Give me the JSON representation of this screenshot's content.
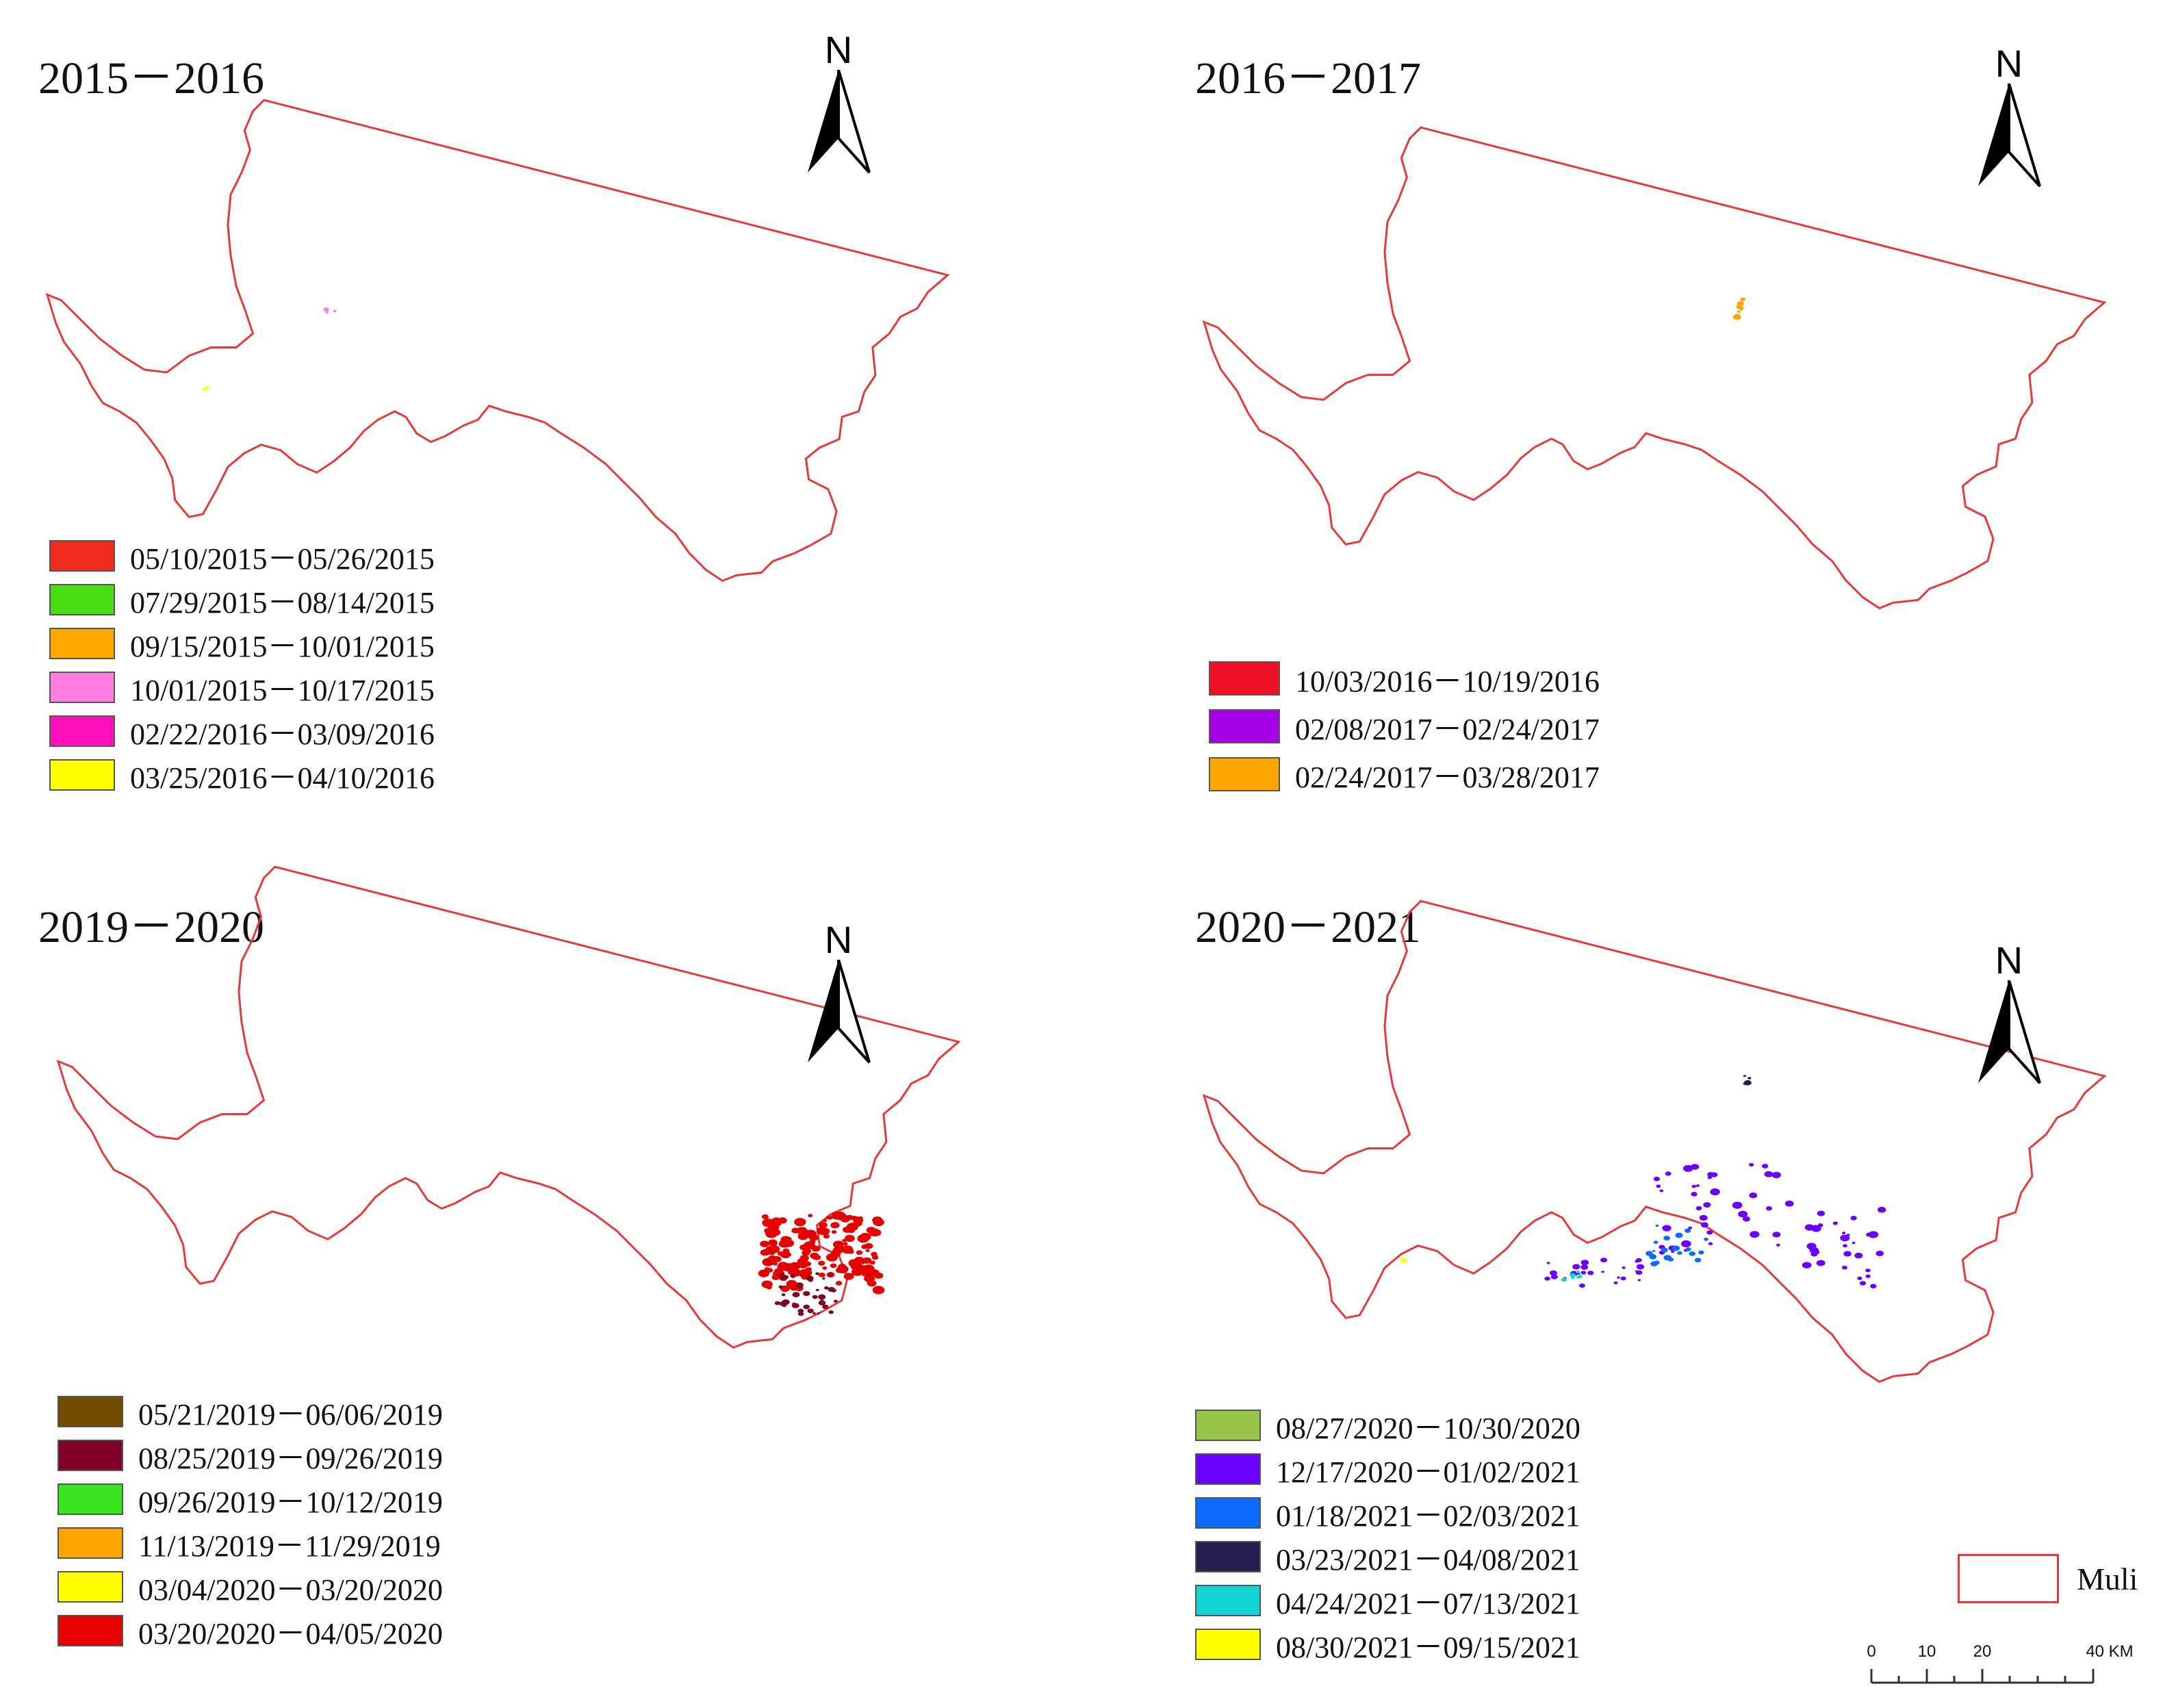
{
  "colors": {
    "boundary": "#e53a3a"
  },
  "panels": [
    {
      "title": "2015－2016",
      "north_label": "N",
      "legend": [
        {
          "label": "05/10/2015－05/26/2015",
          "color": "#f22a1e"
        },
        {
          "label": "07/29/2015－08/14/2015",
          "color": "#4cde14"
        },
        {
          "label": "09/15/2015－10/01/2015",
          "color": "#ffa800"
        },
        {
          "label": "10/01/2015－10/17/2015",
          "color": "#ff7fe0"
        },
        {
          "label": "02/22/2016－03/09/2016",
          "color": "#ff10b8"
        },
        {
          "label": "03/25/2016－04/10/2016",
          "color": "#ffff00"
        }
      ]
    },
    {
      "title": "2016－2017",
      "north_label": "N",
      "legend": [
        {
          "label": "10/03/2016－10/19/2016",
          "color": "#f01026"
        },
        {
          "label": "02/08/2017－02/24/2017",
          "color": "#a800e6"
        },
        {
          "label": "02/24/2017－03/28/2017",
          "color": "#ffa500"
        }
      ]
    },
    {
      "title": "2019－2020",
      "north_label": "N",
      "legend": [
        {
          "label": "05/21/2019－06/06/2019",
          "color": "#734c00"
        },
        {
          "label": "08/25/2019－09/26/2019",
          "color": "#800026"
        },
        {
          "label": "09/26/2019－10/12/2019",
          "color": "#38e51e"
        },
        {
          "label": "11/13/2019－11/29/2019",
          "color": "#ffa500"
        },
        {
          "label": "03/04/2020－03/20/2020",
          "color": "#ffff00"
        },
        {
          "label": "03/20/2020－04/05/2020",
          "color": "#e60000"
        }
      ]
    },
    {
      "title": "2020－2021",
      "north_label": "N",
      "legend": [
        {
          "label": "08/27/2020－10/30/2020",
          "color": "#98c44a"
        },
        {
          "label": "12/17/2020－01/02/2021",
          "color": "#6a00ff"
        },
        {
          "label": "01/18/2021－02/03/2021",
          "color": "#0a6cff"
        },
        {
          "label": "03/23/2021－04/08/2021",
          "color": "#231f4f"
        },
        {
          "label": "04/24/2021－07/13/2021",
          "color": "#12d6d6"
        },
        {
          "label": "08/30/2021－09/15/2021",
          "color": "#ffff00"
        }
      ]
    }
  ],
  "map_legend": {
    "boundary_label": "Muli"
  },
  "scale_bar": {
    "ticks": [
      "0",
      "10",
      "20",
      "40 KM"
    ]
  }
}
